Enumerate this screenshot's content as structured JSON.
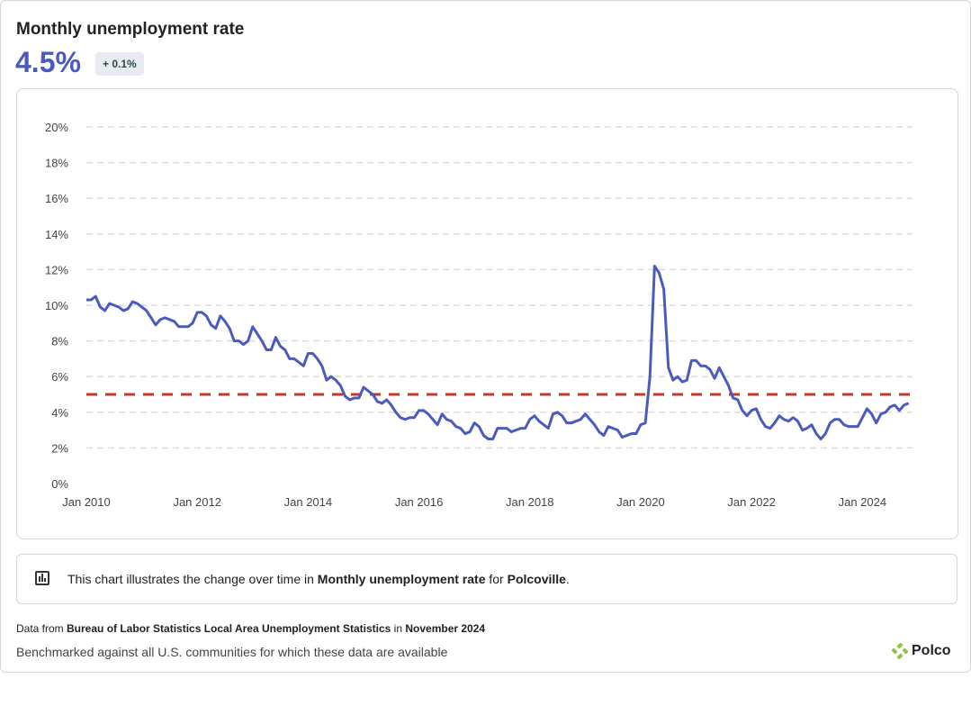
{
  "header": {
    "title": "Monthly unemployment rate",
    "value": "4.5%",
    "change_badge": "+ 0.1%"
  },
  "chart_data": {
    "type": "line",
    "title": "",
    "xlabel": "",
    "ylabel": "",
    "ylim": [
      0,
      20
    ],
    "y_ticks": [
      "0%",
      "2%",
      "4%",
      "6%",
      "8%",
      "10%",
      "12%",
      "14%",
      "16%",
      "18%",
      "20%"
    ],
    "x_ticks": [
      "Jan 2010",
      "Jan 2012",
      "Jan 2014",
      "Jan 2016",
      "Jan 2018",
      "Jan 2020",
      "Jan 2022",
      "Jan 2024"
    ],
    "x_start": "2010-01",
    "x_end": "2024-11",
    "x_frequency": "monthly",
    "grid": "horizontal dashed",
    "series": [
      {
        "color": "#4b5bbd",
        "values": [
          10.3,
          10.3,
          10.5,
          9.9,
          9.7,
          10.1,
          10.0,
          9.9,
          9.7,
          9.8,
          10.2,
          10.1,
          9.9,
          9.7,
          9.3,
          8.9,
          9.2,
          9.3,
          9.2,
          9.1,
          8.8,
          8.8,
          8.8,
          9.0,
          9.6,
          9.6,
          9.4,
          8.9,
          8.7,
          9.4,
          9.1,
          8.7,
          8.0,
          8.0,
          7.8,
          8.0,
          8.8,
          8.4,
          8.0,
          7.5,
          7.5,
          8.2,
          7.7,
          7.5,
          7.0,
          7.0,
          6.8,
          6.6,
          7.3,
          7.3,
          7.0,
          6.6,
          5.8,
          6.0,
          5.8,
          5.5,
          4.9,
          4.7,
          4.8,
          4.8,
          5.4,
          5.2,
          5.0,
          4.6,
          4.5,
          4.7,
          4.4,
          4.0,
          3.7,
          3.6,
          3.7,
          3.7,
          4.1,
          4.1,
          3.9,
          3.6,
          3.3,
          3.9,
          3.6,
          3.5,
          3.2,
          3.1,
          2.8,
          2.9,
          3.4,
          3.2,
          2.7,
          2.5,
          2.5,
          3.1,
          3.1,
          3.1,
          2.9,
          3.0,
          3.1,
          3.1,
          3.6,
          3.8,
          3.5,
          3.3,
          3.1,
          3.9,
          4.0,
          3.8,
          3.4,
          3.4,
          3.5,
          3.6,
          3.9,
          3.6,
          3.3,
          2.9,
          2.7,
          3.2,
          3.1,
          3.0,
          2.6,
          2.7,
          2.8,
          2.8,
          3.3,
          3.4,
          6.0,
          12.2,
          11.8,
          10.9,
          6.5,
          5.8,
          6.0,
          5.7,
          5.8,
          6.9,
          6.9,
          6.6,
          6.6,
          6.4,
          5.9,
          6.5,
          6.0,
          5.5,
          4.8,
          4.7,
          4.1,
          3.8,
          4.1,
          4.2,
          3.6,
          3.2,
          3.1,
          3.4,
          3.8,
          3.6,
          3.5,
          3.7,
          3.5,
          3.0,
          3.1,
          3.3,
          2.8,
          2.5,
          2.8,
          3.4,
          3.6,
          3.6,
          3.3,
          3.2,
          3.2,
          3.2,
          3.7,
          4.2,
          3.9,
          3.4,
          3.9,
          4.0,
          4.3,
          4.4,
          4.1,
          4.4,
          4.5
        ]
      }
    ],
    "benchmark": {
      "value": 5,
      "color": "#c0392b"
    }
  },
  "note": {
    "prefix": "This chart illustrates the change over time in ",
    "metric": "Monthly unemployment rate",
    "mid": " for ",
    "place": "Polcoville",
    "suffix": "."
  },
  "source": {
    "prefix": "Data from ",
    "name": "Bureau of Labor Statistics Local Area Unemployment Statistics",
    "mid": " in ",
    "date": "November 2024"
  },
  "benchmark_text": "Benchmarked against all U.S. communities for which these data are available",
  "logo": {
    "text": "Polco",
    "color": "#8cc63f"
  }
}
